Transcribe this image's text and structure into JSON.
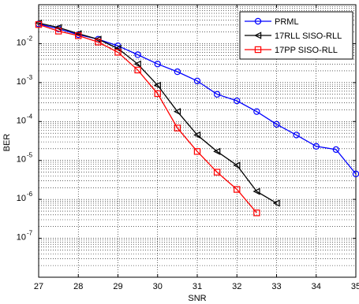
{
  "chart_data": {
    "type": "line",
    "title": "",
    "xlabel": "SNR",
    "ylabel": "BER",
    "xlim": [
      27,
      35
    ],
    "ylim": [
      1e-08,
      0.1
    ],
    "yscale": "log",
    "grid": true,
    "legend_position": "top-right",
    "x_ticks": [
      "27",
      "28",
      "29",
      "30",
      "31",
      "32",
      "33",
      "34",
      "35"
    ],
    "y_ticks": [
      {
        "base": "10",
        "exp": "-7",
        "value": 1e-07
      },
      {
        "base": "10",
        "exp": "-6",
        "value": 1e-06
      },
      {
        "base": "10",
        "exp": "-5",
        "value": 1e-05
      },
      {
        "base": "10",
        "exp": "-4",
        "value": 0.0001
      },
      {
        "base": "10",
        "exp": "-3",
        "value": 0.001
      },
      {
        "base": "10",
        "exp": "-2",
        "value": 0.01
      }
    ],
    "series": [
      {
        "name": "PRML",
        "color": "#0000ff",
        "marker": "circle",
        "x": [
          27,
          27.5,
          28,
          28.5,
          29,
          29.5,
          30,
          30.5,
          31,
          31.5,
          32,
          32.5,
          33,
          33.5,
          34,
          34.5,
          35
        ],
        "y": [
          0.032,
          0.024,
          0.017,
          0.013,
          0.0088,
          0.0052,
          0.003,
          0.0019,
          0.0011,
          0.0005,
          0.00034,
          0.00018,
          8.5e-05,
          4.5e-05,
          2.3e-05,
          1.9e-05,
          4.5e-06
        ]
      },
      {
        "name": "17RLL SISO-RLL",
        "color": "#000000",
        "marker": "triangle-left",
        "x": [
          27,
          27.5,
          28,
          28.5,
          29,
          29.5,
          30,
          30.5,
          31,
          31.5,
          32,
          32.5,
          33
        ],
        "y": [
          0.034,
          0.026,
          0.018,
          0.013,
          0.0075,
          0.003,
          0.00085,
          0.00018,
          4.5e-05,
          1.7e-05,
          7.5e-06,
          1.6e-06,
          8e-07
        ]
      },
      {
        "name": "17PP SISO-RLL",
        "color": "#ff0000",
        "marker": "square",
        "x": [
          27,
          27.5,
          28,
          28.5,
          29,
          29.5,
          30,
          30.5,
          31,
          31.5,
          32,
          32.5
        ],
        "y": [
          0.031,
          0.021,
          0.016,
          0.011,
          0.006,
          0.0021,
          0.00052,
          6.8e-05,
          1.7e-05,
          5e-06,
          1.8e-06,
          4.5e-07
        ]
      }
    ]
  }
}
